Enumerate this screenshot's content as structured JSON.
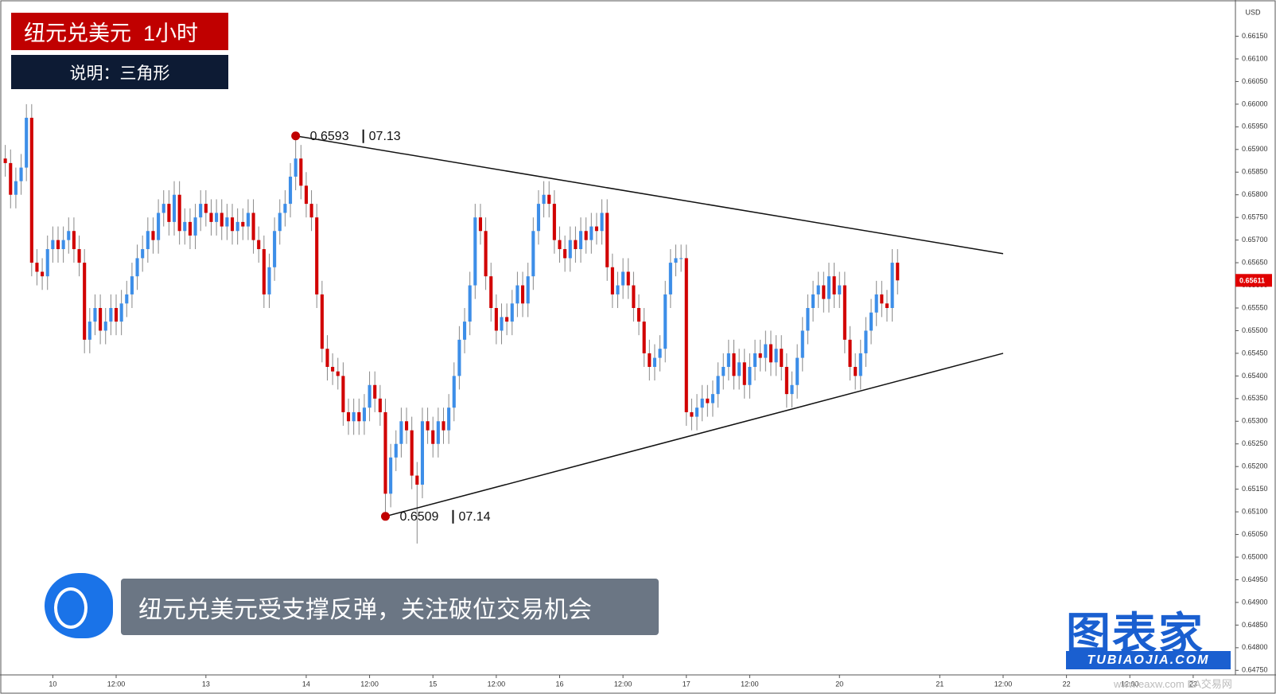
{
  "header": {
    "title": "纽元兑美元  1小时",
    "note": "说明：三角形"
  },
  "caption": "纽元兑美元受支撑反弹，关注破位交易机会",
  "logo": {
    "name": "图表家",
    "url": "TUBIAOJIA.COM"
  },
  "watermark": "www.eaxw.com EA交易网",
  "chart_data": {
    "type": "candlestick",
    "currency": "USD",
    "up_color": "#3d8ee8",
    "down_color": "#d10000",
    "xlim": [
      -10,
      224
    ],
    "ylim": [
      0.6474,
      0.6623
    ],
    "xticks": [
      {
        "value": 0,
        "label": "10"
      },
      {
        "value": 12,
        "label": "12:00"
      },
      {
        "value": 29,
        "label": "13"
      },
      {
        "value": 48,
        "label": "14"
      },
      {
        "value": 60,
        "label": "12:00"
      },
      {
        "value": 72,
        "label": "15"
      },
      {
        "value": 84,
        "label": "12:00"
      },
      {
        "value": 96,
        "label": "16"
      },
      {
        "value": 108,
        "label": "12:00"
      },
      {
        "value": 120,
        "label": "17"
      },
      {
        "value": 132,
        "label": "12:00"
      },
      {
        "value": 149,
        "label": "20"
      },
      {
        "value": 168,
        "label": "21"
      },
      {
        "value": 180,
        "label": "12:00"
      },
      {
        "value": 192,
        "label": "22"
      },
      {
        "value": 204,
        "label": "12:00"
      },
      {
        "value": 216,
        "label": "23"
      }
    ],
    "yticks": [
      {
        "value": 0.6615,
        "label": "0.66150"
      },
      {
        "value": 0.661,
        "label": "0.66100"
      },
      {
        "value": 0.6605,
        "label": "0.66050"
      },
      {
        "value": 0.66,
        "label": "0.66000"
      },
      {
        "value": 0.6595,
        "label": "0.65950"
      },
      {
        "value": 0.659,
        "label": "0.65900"
      },
      {
        "value": 0.6585,
        "label": "0.65850"
      },
      {
        "value": 0.658,
        "label": "0.65800"
      },
      {
        "value": 0.6575,
        "label": "0.65750"
      },
      {
        "value": 0.657,
        "label": "0.65700"
      },
      {
        "value": 0.6565,
        "label": "0.65650"
      },
      {
        "value": 0.656,
        "label": "0.65600"
      },
      {
        "value": 0.6555,
        "label": "0.65550"
      },
      {
        "value": 0.655,
        "label": "0.65500"
      },
      {
        "value": 0.6545,
        "label": "0.65450"
      },
      {
        "value": 0.654,
        "label": "0.65400"
      },
      {
        "value": 0.6535,
        "label": "0.65350"
      },
      {
        "value": 0.653,
        "label": "0.65300"
      },
      {
        "value": 0.6525,
        "label": "0.65250"
      },
      {
        "value": 0.652,
        "label": "0.65200"
      },
      {
        "value": 0.6515,
        "label": "0.65150"
      },
      {
        "value": 0.651,
        "label": "0.65100"
      },
      {
        "value": 0.6505,
        "label": "0.65050"
      },
      {
        "value": 0.65,
        "label": "0.65000"
      },
      {
        "value": 0.6495,
        "label": "0.64950"
      },
      {
        "value": 0.649,
        "label": "0.64900"
      },
      {
        "value": 0.6485,
        "label": "0.64850"
      },
      {
        "value": 0.648,
        "label": "0.64800"
      },
      {
        "value": 0.6475,
        "label": "0.64750"
      }
    ],
    "last_price": {
      "value": 0.65611,
      "label": "0.65611"
    },
    "x": [
      -9,
      -8,
      -7,
      -6,
      -5,
      -4,
      -3,
      -2,
      -1,
      0,
      1,
      2,
      3,
      4,
      5,
      6,
      7,
      8,
      9,
      10,
      11,
      12,
      13,
      14,
      15,
      16,
      17,
      18,
      19,
      20,
      21,
      22,
      23,
      24,
      25,
      26,
      27,
      28,
      29,
      30,
      31,
      32,
      33,
      34,
      35,
      36,
      37,
      38,
      39,
      40,
      41,
      42,
      43,
      44,
      45,
      46,
      47,
      48,
      49,
      50,
      51,
      52,
      53,
      54,
      55,
      56,
      57,
      58,
      59,
      60,
      61,
      62,
      63,
      64,
      65,
      66,
      67,
      68,
      69,
      70,
      71,
      72,
      73,
      74,
      75,
      76,
      77,
      78,
      79,
      80,
      81,
      82,
      83,
      84,
      85,
      86,
      87,
      88,
      89,
      90,
      91,
      92,
      93,
      94,
      95,
      96,
      97,
      98,
      99,
      100,
      101,
      102,
      103,
      104,
      105,
      106,
      107,
      108,
      109,
      110,
      111,
      112,
      113,
      114,
      115,
      116,
      117,
      118,
      119,
      120,
      121,
      122,
      123,
      124,
      125,
      126,
      127,
      128,
      129,
      130,
      131,
      132,
      133,
      134,
      135,
      136,
      137,
      138,
      139,
      140,
      141,
      142,
      143,
      144,
      145,
      146,
      147,
      148,
      149,
      150,
      151,
      152,
      153,
      154,
      155,
      156,
      157,
      158,
      159,
      160
    ],
    "open": [
      0.6588,
      0.6587,
      0.658,
      0.6583,
      0.6586,
      0.6597,
      0.6565,
      0.6563,
      0.6562,
      0.6568,
      0.657,
      0.6568,
      0.657,
      0.6572,
      0.6568,
      0.6565,
      0.6548,
      0.6552,
      0.6555,
      0.655,
      0.6552,
      0.6555,
      0.6552,
      0.6556,
      0.6558,
      0.6562,
      0.6566,
      0.6568,
      0.6572,
      0.657,
      0.6576,
      0.6578,
      0.6574,
      0.658,
      0.6572,
      0.6574,
      0.6571,
      0.6575,
      0.6578,
      0.6576,
      0.6574,
      0.6576,
      0.6573,
      0.6575,
      0.6572,
      0.6574,
      0.6573,
      0.6576,
      0.657,
      0.6568,
      0.6558,
      0.6564,
      0.6572,
      0.6576,
      0.6578,
      0.6584,
      0.6588,
      0.6582,
      0.6578,
      0.6575,
      0.6558,
      0.6546,
      0.6542,
      0.6541,
      0.654,
      0.6532,
      0.653,
      0.6532,
      0.653,
      0.6533,
      0.6538,
      0.6535,
      0.6532,
      0.6514,
      0.6522,
      0.6525,
      0.653,
      0.6528,
      0.6518,
      0.6516,
      0.653,
      0.6528,
      0.6525,
      0.653,
      0.6528,
      0.6533,
      0.654,
      0.6548,
      0.6552,
      0.656,
      0.6575,
      0.6572,
      0.6562,
      0.6555,
      0.655,
      0.6553,
      0.6552,
      0.6556,
      0.656,
      0.6556,
      0.6562,
      0.6572,
      0.6578,
      0.658,
      0.6578,
      0.657,
      0.6568,
      0.6566,
      0.657,
      0.6568,
      0.6572,
      0.657,
      0.6573,
      0.6572,
      0.6576,
      0.6564,
      0.6558,
      0.656,
      0.6563,
      0.656,
      0.6555,
      0.6552,
      0.6545,
      0.6542,
      0.6544,
      0.6546,
      0.6558,
      0.6565,
      0.6566,
      0.6566,
      0.6532,
      0.6531,
      0.6533,
      0.6535,
      0.6534,
      0.6536,
      0.654,
      0.6542,
      0.6545,
      0.654,
      0.6543,
      0.6538,
      0.6542,
      0.6545,
      0.6544,
      0.6547,
      0.6543,
      0.6546,
      0.6542,
      0.6536,
      0.6538,
      0.6544,
      0.655,
      0.6555,
      0.6558,
      0.656,
      0.6557,
      0.6562,
      0.6558,
      0.656,
      0.6548,
      0.6542,
      0.654,
      0.6545,
      0.655,
      0.6554,
      0.6558,
      0.6556,
      0.6555,
      0.6565
    ],
    "high": [
      0.6591,
      0.659,
      0.6586,
      0.6589,
      0.66,
      0.66,
      0.6568,
      0.6566,
      0.6571,
      0.6573,
      0.6573,
      0.6573,
      0.6575,
      0.6575,
      0.6571,
      0.6568,
      0.6555,
      0.6558,
      0.6558,
      0.6555,
      0.6558,
      0.6558,
      0.6559,
      0.6561,
      0.6565,
      0.6569,
      0.6571,
      0.6575,
      0.6575,
      0.6579,
      0.6581,
      0.6581,
      0.6583,
      0.6583,
      0.6577,
      0.6577,
      0.6578,
      0.6581,
      0.6581,
      0.6579,
      0.6579,
      0.6579,
      0.6578,
      0.6578,
      0.6577,
      0.6577,
      0.6579,
      0.6579,
      0.6573,
      0.6571,
      0.6567,
      0.6575,
      0.6579,
      0.6581,
      0.6587,
      0.6593,
      0.6591,
      0.6585,
      0.6581,
      0.6578,
      0.6561,
      0.6549,
      0.6545,
      0.6544,
      0.6543,
      0.6535,
      0.6535,
      0.6535,
      0.6536,
      0.6541,
      0.6541,
      0.6538,
      0.6535,
      0.6525,
      0.6528,
      0.6533,
      0.6533,
      0.6531,
      0.6521,
      0.6533,
      0.6533,
      0.6531,
      0.6533,
      0.6533,
      0.6536,
      0.6543,
      0.6551,
      0.6555,
      0.6563,
      0.6578,
      0.6578,
      0.6575,
      0.6565,
      0.6558,
      0.6556,
      0.6556,
      0.6559,
      0.6563,
      0.6563,
      0.6565,
      0.6575,
      0.6581,
      0.6583,
      0.6583,
      0.6581,
      0.6573,
      0.6571,
      0.6573,
      0.6573,
      0.6575,
      0.6575,
      0.6576,
      0.6576,
      0.6579,
      0.6579,
      0.6567,
      0.6563,
      0.6566,
      0.6566,
      0.6563,
      0.6558,
      0.6555,
      0.6548,
      0.6547,
      0.6549,
      0.6561,
      0.6568,
      0.6569,
      0.6569,
      0.6569,
      0.6535,
      0.6536,
      0.6538,
      0.6538,
      0.6539,
      0.6543,
      0.6545,
      0.6548,
      0.6548,
      0.6546,
      0.6546,
      0.6545,
      0.6548,
      0.6548,
      0.655,
      0.655,
      0.6549,
      0.6549,
      0.6545,
      0.6541,
      0.6547,
      0.6553,
      0.6558,
      0.6561,
      0.6563,
      0.6563,
      0.6565,
      0.6565,
      0.6563,
      0.6563,
      0.6551,
      0.6545,
      0.6548,
      0.6553,
      0.6557,
      0.6561,
      0.6561,
      0.6559,
      0.6568,
      0.6568
    ],
    "low": [
      0.6584,
      0.6577,
      0.6577,
      0.658,
      0.6583,
      0.6562,
      0.656,
      0.6559,
      0.6559,
      0.6565,
      0.6565,
      0.6565,
      0.6567,
      0.6565,
      0.6562,
      0.6545,
      0.6545,
      0.6549,
      0.6547,
      0.6547,
      0.6549,
      0.6549,
      0.6549,
      0.6553,
      0.6555,
      0.6559,
      0.6563,
      0.6565,
      0.6567,
      0.6567,
      0.6573,
      0.6571,
      0.6571,
      0.6569,
      0.6569,
      0.6568,
      0.6568,
      0.6572,
      0.6573,
      0.6571,
      0.6571,
      0.657,
      0.657,
      0.6569,
      0.6569,
      0.657,
      0.657,
      0.6567,
      0.6565,
      0.6555,
      0.6555,
      0.6561,
      0.6569,
      0.6573,
      0.6575,
      0.6581,
      0.6579,
      0.6575,
      0.6572,
      0.6555,
      0.6543,
      0.6539,
      0.6538,
      0.6537,
      0.6529,
      0.6527,
      0.6527,
      0.6527,
      0.6527,
      0.653,
      0.6532,
      0.6529,
      0.6509,
      0.6511,
      0.6519,
      0.6522,
      0.6525,
      0.6515,
      0.6503,
      0.6513,
      0.6525,
      0.6522,
      0.6522,
      0.6525,
      0.6525,
      0.653,
      0.6537,
      0.6545,
      0.6549,
      0.6557,
      0.6569,
      0.6559,
      0.6552,
      0.6547,
      0.6547,
      0.6549,
      0.6549,
      0.6553,
      0.6553,
      0.6553,
      0.6559,
      0.6569,
      0.6575,
      0.6575,
      0.6567,
      0.6565,
      0.6563,
      0.6563,
      0.6565,
      0.6565,
      0.6567,
      0.6567,
      0.6569,
      0.6569,
      0.6561,
      0.6555,
      0.6555,
      0.6557,
      0.6557,
      0.6552,
      0.6549,
      0.6542,
      0.6539,
      0.6539,
      0.6541,
      0.6543,
      0.6555,
      0.6562,
      0.6563,
      0.6529,
      0.6528,
      0.6528,
      0.653,
      0.6531,
      0.6531,
      0.6533,
      0.6537,
      0.6539,
      0.6537,
      0.6537,
      0.6535,
      0.6535,
      0.6539,
      0.6541,
      0.6541,
      0.654,
      0.654,
      0.6539,
      0.6533,
      0.6533,
      0.6535,
      0.6541,
      0.6547,
      0.6552,
      0.6555,
      0.6554,
      0.6554,
      0.6555,
      0.6555,
      0.6545,
      0.6539,
      0.6537,
      0.6537,
      0.6542,
      0.6547,
      0.6551,
      0.6553,
      0.6552,
      0.6552,
      0.6558
    ],
    "close": [
      0.6587,
      0.658,
      0.6583,
      0.6586,
      0.6597,
      0.6565,
      0.6563,
      0.6562,
      0.6568,
      0.657,
      0.6568,
      0.657,
      0.6572,
      0.6568,
      0.6565,
      0.6548,
      0.6552,
      0.6555,
      0.655,
      0.6552,
      0.6555,
      0.6552,
      0.6556,
      0.6558,
      0.6562,
      0.6566,
      0.6568,
      0.6572,
      0.657,
      0.6576,
      0.6578,
      0.6574,
      0.658,
      0.6572,
      0.6574,
      0.6571,
      0.6575,
      0.6578,
      0.6576,
      0.6574,
      0.6576,
      0.6573,
      0.6575,
      0.6572,
      0.6574,
      0.6573,
      0.6576,
      0.657,
      0.6568,
      0.6558,
      0.6564,
      0.6572,
      0.6576,
      0.6578,
      0.6584,
      0.6588,
      0.6582,
      0.6578,
      0.6575,
      0.6558,
      0.6546,
      0.6542,
      0.6541,
      0.654,
      0.6532,
      0.653,
      0.6532,
      0.653,
      0.6533,
      0.6538,
      0.6535,
      0.6532,
      0.6514,
      0.6522,
      0.6525,
      0.653,
      0.6528,
      0.6518,
      0.6516,
      0.653,
      0.6528,
      0.6525,
      0.653,
      0.6528,
      0.6533,
      0.654,
      0.6548,
      0.6552,
      0.656,
      0.6575,
      0.6572,
      0.6562,
      0.6555,
      0.655,
      0.6553,
      0.6552,
      0.6556,
      0.656,
      0.6556,
      0.6562,
      0.6572,
      0.6578,
      0.658,
      0.6578,
      0.657,
      0.6568,
      0.6566,
      0.657,
      0.6568,
      0.6572,
      0.657,
      0.6573,
      0.6572,
      0.6576,
      0.6564,
      0.6558,
      0.656,
      0.6563,
      0.656,
      0.6555,
      0.6552,
      0.6545,
      0.6542,
      0.6544,
      0.6546,
      0.6558,
      0.6565,
      0.6566,
      0.6566,
      0.6532,
      0.6531,
      0.6533,
      0.6535,
      0.6534,
      0.6536,
      0.654,
      0.6542,
      0.6545,
      0.654,
      0.6543,
      0.6538,
      0.6542,
      0.6545,
      0.6544,
      0.6547,
      0.6543,
      0.6546,
      0.6542,
      0.6536,
      0.6538,
      0.6544,
      0.655,
      0.6555,
      0.6558,
      0.656,
      0.6557,
      0.6562,
      0.6558,
      0.656,
      0.6548,
      0.6542,
      0.654,
      0.6545,
      0.655,
      0.6554,
      0.6558,
      0.6556,
      0.6555,
      0.6565,
      0.65611
    ],
    "trendlines": [
      {
        "x": [
          46,
          180
        ],
        "y": [
          0.6593,
          0.6567
        ]
      },
      {
        "x": [
          63,
          180
        ],
        "y": [
          0.6509,
          0.6545
        ]
      }
    ],
    "annotations": [
      {
        "x": 46,
        "y": 0.6593,
        "date": "07.13"
      },
      {
        "x": 63,
        "y": 0.6509,
        "date": "07.14"
      }
    ]
  }
}
